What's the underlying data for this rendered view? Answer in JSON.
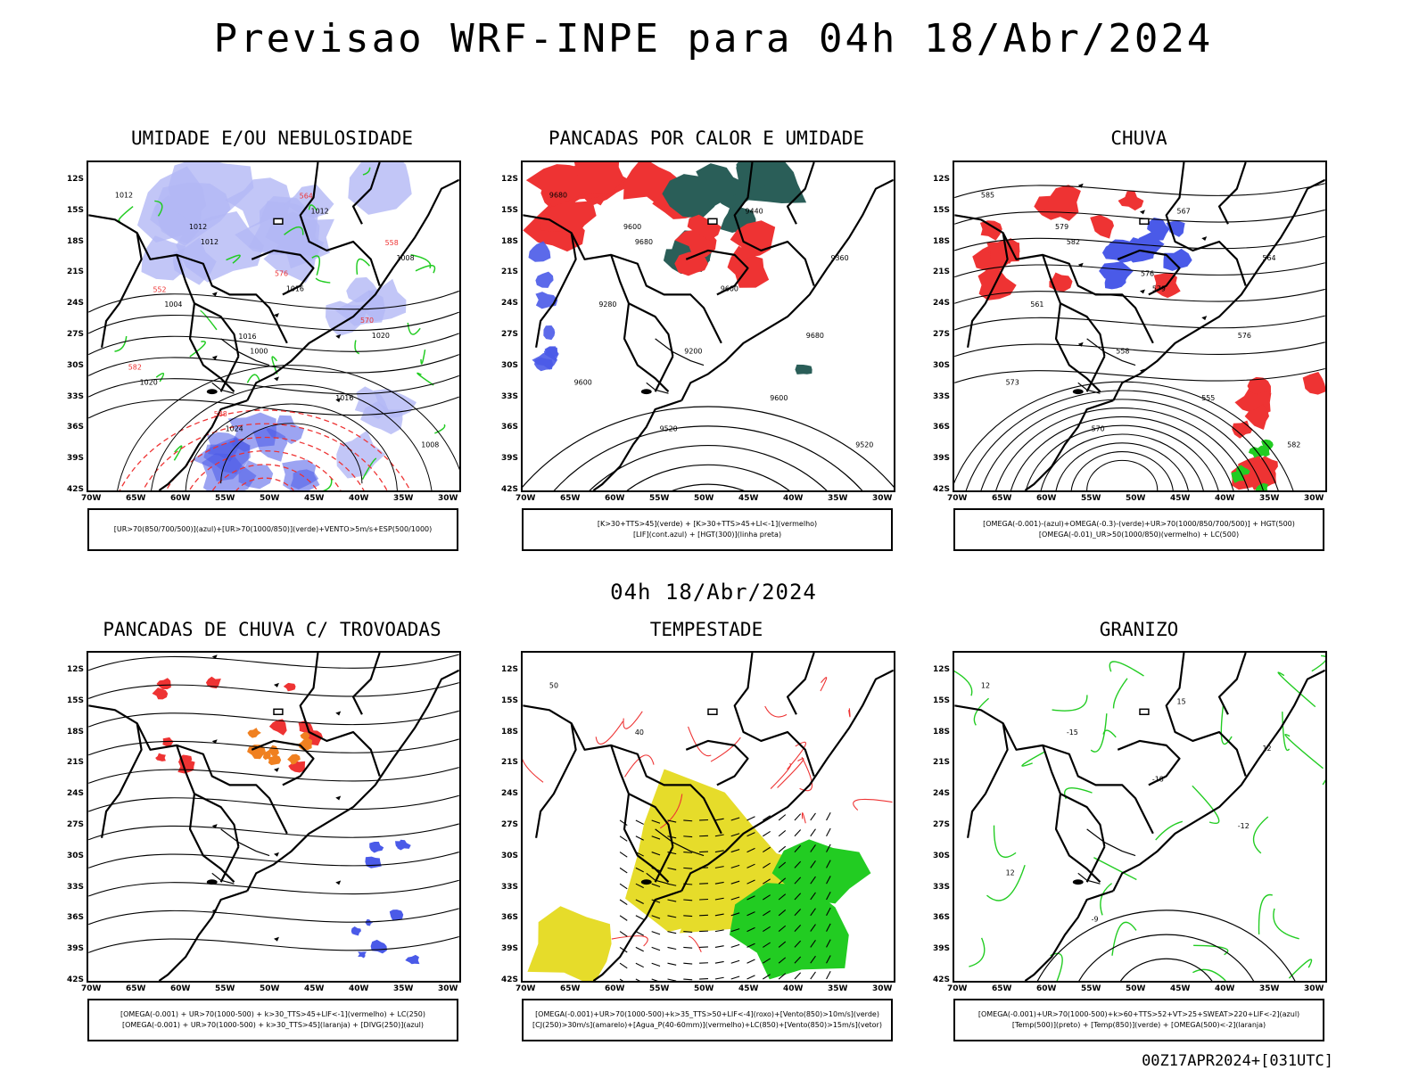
{
  "header": {
    "title": "Previsao WRF-INPE  para 04h 18/Abr/2024",
    "subtitle": "04h 18/Abr/2024",
    "footer": "00Z17APR2024+[031UTC]"
  },
  "axes": {
    "lat": [
      "12S",
      "15S",
      "18S",
      "21S",
      "24S",
      "27S",
      "30S",
      "33S",
      "36S",
      "39S",
      "42S"
    ],
    "lon": [
      "70W",
      "65W",
      "60W",
      "55W",
      "50W",
      "45W",
      "40W",
      "35W",
      "30W"
    ]
  },
  "colors": {
    "blue": "#4a5ae8",
    "lavender": "#b3b8f5",
    "green": "#22cc22",
    "red": "#ee3333",
    "darkteal": "#2a5e58",
    "orange": "#f08020",
    "yellow": "#e6dc2a",
    "black": "#000000"
  },
  "panels": [
    {
      "title": "UMIDADE E/OU NEBULOSIDADE",
      "legend": [
        "[UR>70(850/700/500)](azul)+[UR>70(1000/850)](verde)+VENTO>5m/s+ESP(500/1000)"
      ],
      "labels": [
        "1012",
        "1012",
        "1016",
        "1020",
        "1020",
        "1024",
        "1012",
        "1008",
        "1004",
        "1000",
        "1016",
        "1008",
        "1012",
        "576",
        "570",
        "582",
        "588",
        "564",
        "558",
        "552",
        "1016"
      ]
    },
    {
      "title": "PANCADAS POR CALOR E UMIDADE",
      "legend": [
        "[K>30+TTS>45](verde) + [K>30+TTS>45+LI<-1](vermelho)",
        "[LIF](cont.azul) + [HGT(300)](linha preta)"
      ],
      "labels": [
        "9680",
        "9680",
        "9600",
        "9680",
        "9600",
        "9520",
        "9440",
        "9360",
        "9280",
        "9200",
        "9600",
        "9520",
        "9600"
      ]
    },
    {
      "title": "CHUVA",
      "legend": [
        "[OMEGA(-0.001)-(azul)+OMEGA(-0.3)-(verde)+UR>70(1000/850/700/500)] + HGT(500)",
        "[OMEGA(-0.01)_UR>50(1000/850)(vermelho) + LC(500)"
      ],
      "labels": [
        "585",
        "582",
        "579",
        "576",
        "573",
        "570",
        "567",
        "564",
        "561",
        "558",
        "555",
        "582",
        "579",
        "576"
      ]
    },
    {
      "title": "PANCADAS DE CHUVA C/ TROVOADAS",
      "legend": [
        "[OMEGA(-0.001) + UR>70(1000-500) + k>30_TTS>45+LIF<-1](vermelho) + LC(250)",
        "[OMEGA(-0.001) + UR>70(1000-500) + k>30_TTS>45](laranja) + [DIVG(250)](azul)"
      ],
      "labels": []
    },
    {
      "title": "TEMPESTADE",
      "legend": [
        "[OMEGA(-0.001)+UR>70(1000-500)+k>35_TTS>50+LIF<-4](roxo)+[Vento(850)>10m/s](verde)",
        "[CJ(250)>30m/s](amarelo)+[Agua_P(40-60mm)](vermelho)+LC(850)+[Vento(850)>15m/s](vetor)"
      ],
      "labels": [
        "50",
        "40"
      ]
    },
    {
      "title": "GRANIZO",
      "legend": [
        "[OMEGA(-0.001)+UR>70(1000-500)+k>60+TTS>52+VT>25+SWEAT>220+LIF<-2](azul)",
        "[Temp(500)](preto) + [Temp(850)](verde) + [OMEGA(500)<-2](laranja)"
      ],
      "labels": [
        "12",
        "-15",
        "-18",
        "-12",
        "12",
        "-9",
        "15",
        "12"
      ]
    }
  ]
}
